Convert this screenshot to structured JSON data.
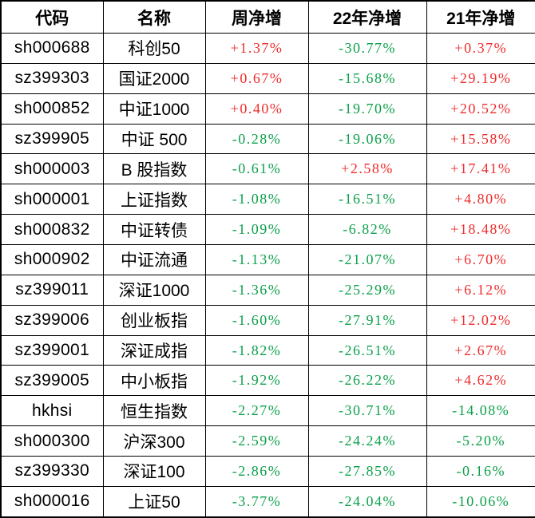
{
  "colors": {
    "positive_red": "#ee2c2c",
    "negative_green": "#0ca04b",
    "text": "#000000",
    "border": "#000000",
    "background": "#ffffff"
  },
  "chart_data": {
    "type": "table",
    "title": "",
    "columns": [
      "代码",
      "名称",
      "周净增",
      "22年净增",
      "21年净增"
    ],
    "color_rule": {
      "plus_sign": "positive_red",
      "minus_sign": "negative_green"
    },
    "rows": [
      [
        "sh000688",
        "科创50",
        "+1.37%",
        "-30.77%",
        "+0.37%"
      ],
      [
        "sz399303",
        "国证2000",
        "+0.67%",
        "-15.68%",
        "+29.19%"
      ],
      [
        "sh000852",
        "中证1000",
        "+0.40%",
        "-19.70%",
        "+20.52%"
      ],
      [
        "sz399905",
        "中证 500",
        "-0.28%",
        "-19.06%",
        "+15.58%"
      ],
      [
        "sh000003",
        "B 股指数",
        "-0.61%",
        "+2.58%",
        "+17.41%"
      ],
      [
        "sh000001",
        "上证指数",
        "-1.08%",
        "-16.51%",
        "+4.80%"
      ],
      [
        "sh000832",
        "中证转债",
        "-1.09%",
        "-6.82%",
        "+18.48%"
      ],
      [
        "sh000902",
        "中证流通",
        "-1.13%",
        "-21.07%",
        "+6.70%"
      ],
      [
        "sz399011",
        "深证1000",
        "-1.36%",
        "-25.29%",
        "+6.12%"
      ],
      [
        "sz399006",
        "创业板指",
        "-1.60%",
        "-27.91%",
        "+12.02%"
      ],
      [
        "sz399001",
        "深证成指",
        "-1.82%",
        "-26.51%",
        "+2.67%"
      ],
      [
        "sz399005",
        "中小板指",
        "-1.92%",
        "-26.22%",
        "+4.62%"
      ],
      [
        "hkhsi",
        "恒生指数",
        "-2.27%",
        "-30.71%",
        "-14.08%"
      ],
      [
        "sh000300",
        "沪深300",
        "-2.59%",
        "-24.24%",
        "-5.20%"
      ],
      [
        "sz399330",
        "深证100",
        "-2.86%",
        "-27.85%",
        "-0.16%"
      ],
      [
        "sh000016",
        "上证50",
        "-3.77%",
        "-24.04%",
        "-10.06%"
      ]
    ]
  }
}
